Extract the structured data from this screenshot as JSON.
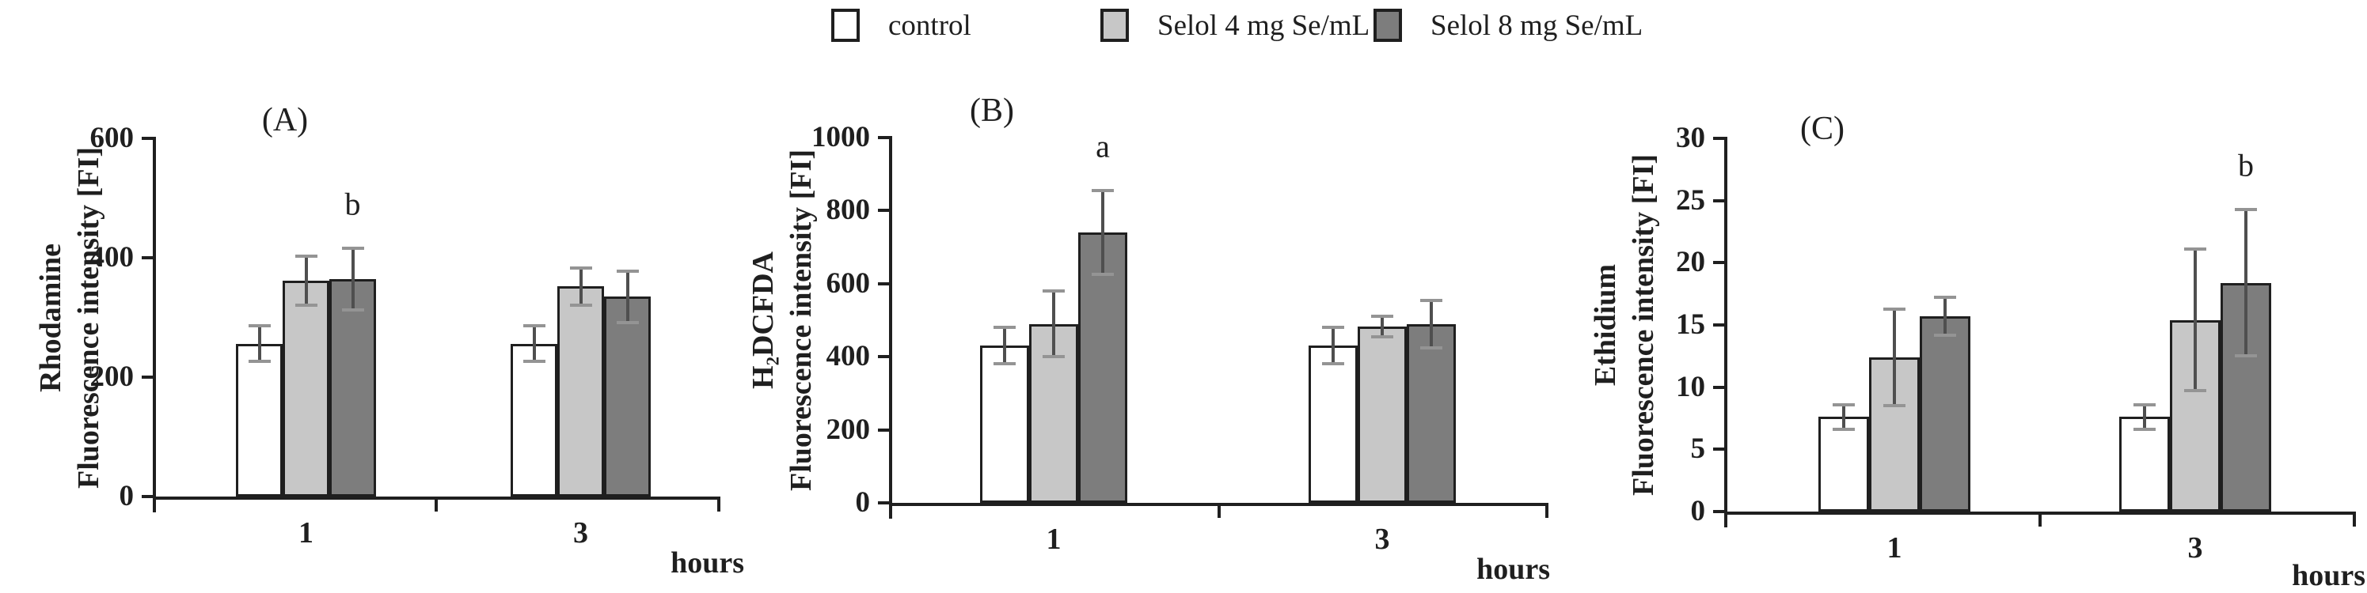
{
  "figure": {
    "background": "#ffffff",
    "axis_color": "#1f1f1f",
    "error_bar_color": "#4f4f4f",
    "error_cap_color": "#949494",
    "legend": {
      "position": "top-center",
      "items": [
        {
          "label": "control",
          "color": "#ffffff"
        },
        {
          "label": "Selol 4 mg Se/mL",
          "color": "#c7c7c7"
        },
        {
          "label": "Selol 8 mg Se/mL",
          "color": "#7d7d7d"
        }
      ]
    }
  },
  "chart_data": [
    {
      "type": "bar",
      "panel_label": "(A)",
      "ylabel_lines": [
        "Rhodamine",
        "Fluorescence intensity [FI]"
      ],
      "xlabel": "hours",
      "categories": [
        "1",
        "3"
      ],
      "ylim": [
        0,
        600
      ],
      "ytick_step": 200,
      "yticks": [
        0,
        200,
        400,
        600
      ],
      "grid": false,
      "series": [
        {
          "name": "control",
          "color": "#ffffff",
          "values": [
            256,
            256
          ],
          "errors": [
            30,
            30
          ]
        },
        {
          "name": "Selol 4 mg Se/mL",
          "color": "#c7c7c7",
          "values": [
            361,
            352
          ],
          "errors": [
            41,
            31
          ]
        },
        {
          "name": "Selol 8 mg Se/mL",
          "color": "#7d7d7d",
          "values": [
            364,
            335
          ],
          "errors": [
            52,
            43
          ]
        }
      ],
      "annotations": [
        {
          "text": "b",
          "category_index": 0,
          "series_index": 2
        }
      ]
    },
    {
      "type": "bar",
      "panel_label": "(B)",
      "ylabel_lines": [
        "H₂DCFDA",
        "Fluorescence intensity [FI]"
      ],
      "xlabel": "hours",
      "categories": [
        "1",
        "3"
      ],
      "ylim": [
        0,
        1000
      ],
      "ytick_step": 200,
      "yticks": [
        0,
        200,
        400,
        600,
        800,
        1000
      ],
      "grid": false,
      "series": [
        {
          "name": "control",
          "color": "#ffffff",
          "values": [
            430,
            430
          ],
          "errors": [
            50,
            50
          ]
        },
        {
          "name": "Selol 4 mg Se/mL",
          "color": "#c7c7c7",
          "values": [
            490,
            483
          ],
          "errors": [
            90,
            28
          ]
        },
        {
          "name": "Selol 8 mg Se/mL",
          "color": "#7d7d7d",
          "values": [
            740,
            489
          ],
          "errors": [
            115,
            65
          ]
        }
      ],
      "annotations": [
        {
          "text": "a",
          "category_index": 0,
          "series_index": 2
        }
      ]
    },
    {
      "type": "bar",
      "panel_label": "(C)",
      "ylabel_lines": [
        "Ethidium",
        "Fluorescence intensity [FI]"
      ],
      "xlabel": "hours",
      "categories": [
        "1",
        "3"
      ],
      "ylim": [
        0,
        30
      ],
      "ytick_step": 5,
      "yticks": [
        0,
        5,
        10,
        15,
        20,
        25,
        30
      ],
      "grid": false,
      "series": [
        {
          "name": "control",
          "color": "#ffffff",
          "values": [
            7.6,
            7.6
          ],
          "errors": [
            1.0,
            1.0
          ]
        },
        {
          "name": "Selol 4 mg Se/mL",
          "color": "#c7c7c7",
          "values": [
            12.4,
            15.4
          ],
          "errors": [
            3.9,
            5.7
          ]
        },
        {
          "name": "Selol 8 mg Se/mL",
          "color": "#7d7d7d",
          "values": [
            15.7,
            18.4
          ],
          "errors": [
            1.5,
            5.9
          ]
        }
      ],
      "annotations": [
        {
          "text": "b",
          "category_index": 1,
          "series_index": 2
        }
      ]
    }
  ]
}
